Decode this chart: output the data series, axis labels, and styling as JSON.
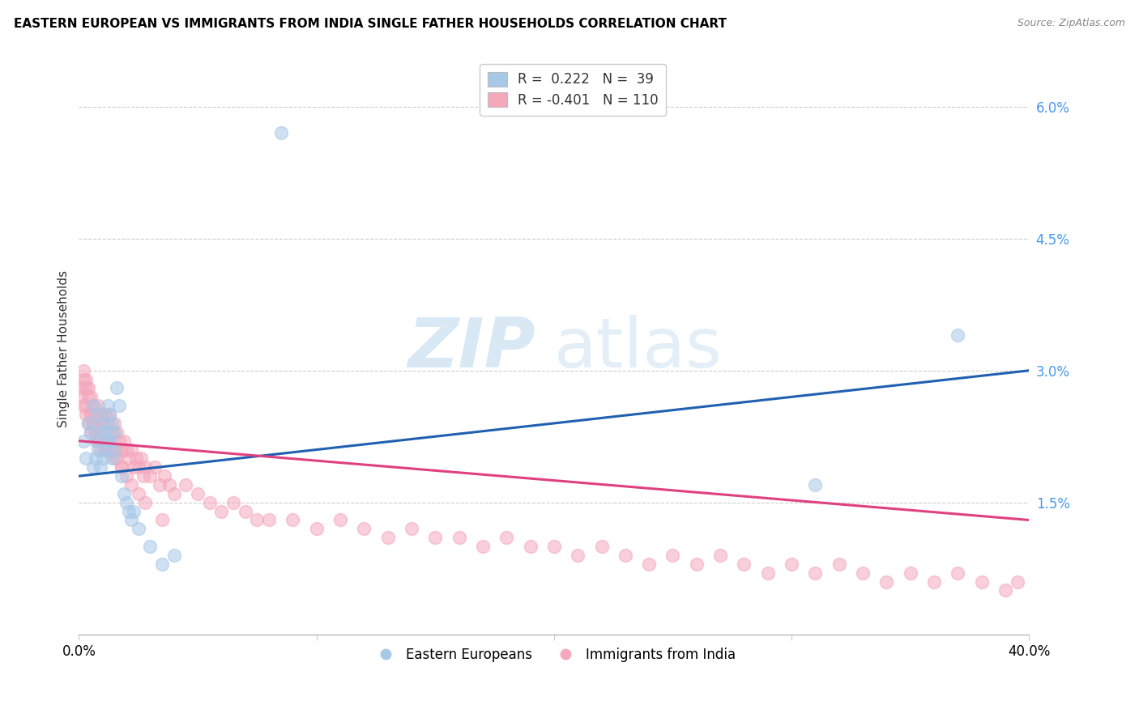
{
  "title": "EASTERN EUROPEAN VS IMMIGRANTS FROM INDIA SINGLE FATHER HOUSEHOLDS CORRELATION CHART",
  "source": "Source: ZipAtlas.com",
  "ylabel": "Single Father Households",
  "ytick_labels": [
    "1.5%",
    "3.0%",
    "4.5%",
    "6.0%"
  ],
  "ytick_values": [
    0.015,
    0.03,
    0.045,
    0.06
  ],
  "xlim": [
    0.0,
    0.4
  ],
  "ylim": [
    0.0,
    0.065
  ],
  "legend_blue_r": "0.222",
  "legend_blue_n": "39",
  "legend_pink_r": "-0.401",
  "legend_pink_n": "110",
  "legend_label_blue": "Eastern Europeans",
  "legend_label_pink": "Immigrants from India",
  "blue_color": "#a8c8e8",
  "pink_color": "#f4a8bc",
  "blue_line_color": "#2060b0",
  "pink_line_color": "#e04080",
  "watermark_zip": "ZIP",
  "watermark_atlas": "atlas",
  "blue_scatter_x": [
    0.002,
    0.003,
    0.004,
    0.005,
    0.006,
    0.006,
    0.007,
    0.007,
    0.008,
    0.008,
    0.009,
    0.009,
    0.01,
    0.01,
    0.011,
    0.011,
    0.012,
    0.012,
    0.013,
    0.013,
    0.014,
    0.014,
    0.015,
    0.015,
    0.016,
    0.017,
    0.018,
    0.019,
    0.02,
    0.021,
    0.022,
    0.023,
    0.025,
    0.03,
    0.035,
    0.04,
    0.085,
    0.31,
    0.37
  ],
  "blue_scatter_y": [
    0.022,
    0.02,
    0.024,
    0.023,
    0.026,
    0.019,
    0.022,
    0.02,
    0.025,
    0.021,
    0.023,
    0.019,
    0.024,
    0.02,
    0.023,
    0.021,
    0.026,
    0.022,
    0.025,
    0.022,
    0.024,
    0.02,
    0.023,
    0.021,
    0.028,
    0.026,
    0.018,
    0.016,
    0.015,
    0.014,
    0.013,
    0.014,
    0.012,
    0.01,
    0.008,
    0.009,
    0.057,
    0.017,
    0.034
  ],
  "pink_scatter_x": [
    0.001,
    0.002,
    0.002,
    0.003,
    0.003,
    0.004,
    0.004,
    0.005,
    0.005,
    0.005,
    0.006,
    0.006,
    0.007,
    0.007,
    0.008,
    0.008,
    0.009,
    0.009,
    0.01,
    0.01,
    0.011,
    0.011,
    0.012,
    0.012,
    0.013,
    0.013,
    0.014,
    0.015,
    0.015,
    0.016,
    0.016,
    0.017,
    0.018,
    0.018,
    0.019,
    0.02,
    0.021,
    0.022,
    0.023,
    0.024,
    0.025,
    0.026,
    0.027,
    0.028,
    0.03,
    0.032,
    0.034,
    0.036,
    0.038,
    0.04,
    0.045,
    0.05,
    0.055,
    0.06,
    0.065,
    0.07,
    0.075,
    0.08,
    0.09,
    0.1,
    0.11,
    0.12,
    0.13,
    0.14,
    0.15,
    0.16,
    0.17,
    0.18,
    0.19,
    0.2,
    0.21,
    0.22,
    0.23,
    0.24,
    0.25,
    0.26,
    0.27,
    0.28,
    0.29,
    0.3,
    0.31,
    0.32,
    0.33,
    0.34,
    0.35,
    0.36,
    0.37,
    0.38,
    0.39,
    0.395,
    0.001,
    0.002,
    0.003,
    0.003,
    0.004,
    0.005,
    0.006,
    0.007,
    0.008,
    0.009,
    0.01,
    0.012,
    0.014,
    0.016,
    0.018,
    0.02,
    0.022,
    0.025,
    0.028,
    0.035
  ],
  "pink_scatter_y": [
    0.028,
    0.03,
    0.026,
    0.029,
    0.025,
    0.028,
    0.024,
    0.027,
    0.025,
    0.023,
    0.026,
    0.024,
    0.025,
    0.023,
    0.026,
    0.022,
    0.025,
    0.023,
    0.024,
    0.022,
    0.025,
    0.021,
    0.024,
    0.022,
    0.025,
    0.021,
    0.023,
    0.024,
    0.02,
    0.023,
    0.021,
    0.022,
    0.021,
    0.019,
    0.022,
    0.021,
    0.02,
    0.021,
    0.019,
    0.02,
    0.019,
    0.02,
    0.018,
    0.019,
    0.018,
    0.019,
    0.017,
    0.018,
    0.017,
    0.016,
    0.017,
    0.016,
    0.015,
    0.014,
    0.015,
    0.014,
    0.013,
    0.013,
    0.013,
    0.012,
    0.013,
    0.012,
    0.011,
    0.012,
    0.011,
    0.011,
    0.01,
    0.011,
    0.01,
    0.01,
    0.009,
    0.01,
    0.009,
    0.008,
    0.009,
    0.008,
    0.009,
    0.008,
    0.007,
    0.008,
    0.007,
    0.008,
    0.007,
    0.006,
    0.007,
    0.006,
    0.007,
    0.006,
    0.005,
    0.006,
    0.027,
    0.029,
    0.028,
    0.026,
    0.027,
    0.025,
    0.024,
    0.023,
    0.022,
    0.021,
    0.024,
    0.022,
    0.021,
    0.02,
    0.019,
    0.018,
    0.017,
    0.016,
    0.015,
    0.013
  ]
}
